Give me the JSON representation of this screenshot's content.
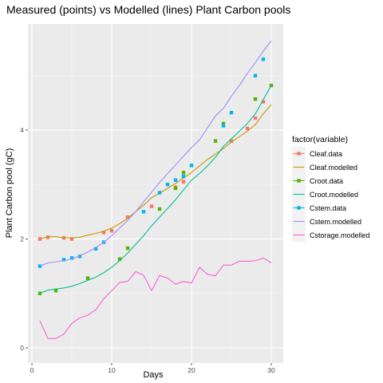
{
  "chart_data": {
    "type": "line",
    "title": "Measured (points) vs Modelled (lines) Plant Carbon pools",
    "xlabel": "Days",
    "ylabel": "Plant Carbon pool (gC)",
    "xlim": [
      -0.5,
      31.5
    ],
    "ylim": [
      -0.28,
      5.95
    ],
    "x_ticks": [
      0,
      10,
      20,
      30
    ],
    "y_ticks": [
      0,
      2,
      4
    ],
    "grid": true,
    "legend_placement": "right",
    "legend_title": "factor(variable)",
    "series": [
      {
        "name": "Cleaf.data",
        "kind": "points",
        "color": "#F8766D",
        "points": [
          [
            1,
            2.0
          ],
          [
            2,
            2.03
          ],
          [
            4,
            2.02
          ],
          [
            5,
            2.0
          ],
          [
            9,
            2.12
          ],
          [
            10,
            2.15
          ],
          [
            12,
            2.4
          ],
          [
            15,
            2.6
          ],
          [
            18,
            2.95
          ],
          [
            19,
            3.05
          ],
          [
            25,
            3.8
          ],
          [
            27,
            4.03
          ],
          [
            28,
            4.22
          ],
          [
            29,
            4.52
          ]
        ]
      },
      {
        "name": "Cleaf.modelled",
        "kind": "line",
        "color": "#C49A00",
        "points": [
          [
            1,
            2.0
          ],
          [
            2,
            2.04
          ],
          [
            3,
            2.04
          ],
          [
            4,
            2.02
          ],
          [
            5,
            2.02
          ],
          [
            6,
            2.03
          ],
          [
            7,
            2.07
          ],
          [
            8,
            2.1
          ],
          [
            9,
            2.14
          ],
          [
            10,
            2.2
          ],
          [
            11,
            2.28
          ],
          [
            12,
            2.38
          ],
          [
            13,
            2.5
          ],
          [
            14,
            2.62
          ],
          [
            15,
            2.76
          ],
          [
            16,
            2.84
          ],
          [
            17,
            2.93
          ],
          [
            18,
            3.02
          ],
          [
            19,
            3.12
          ],
          [
            20,
            3.22
          ],
          [
            21,
            3.34
          ],
          [
            22,
            3.46
          ],
          [
            23,
            3.56
          ],
          [
            24,
            3.66
          ],
          [
            25,
            3.78
          ],
          [
            26,
            3.88
          ],
          [
            27,
            3.98
          ],
          [
            28,
            4.1
          ],
          [
            29,
            4.3
          ],
          [
            30,
            4.47
          ]
        ]
      },
      {
        "name": "Croot.data",
        "kind": "points",
        "color": "#53B400",
        "points": [
          [
            1,
            1.0
          ],
          [
            3,
            1.05
          ],
          [
            7,
            1.28
          ],
          [
            11,
            1.63
          ],
          [
            12,
            1.83
          ],
          [
            16,
            2.55
          ],
          [
            18,
            2.93
          ],
          [
            19,
            3.22
          ],
          [
            23,
            3.8
          ],
          [
            24,
            4.12
          ],
          [
            28,
            4.57
          ],
          [
            30,
            4.82
          ]
        ]
      },
      {
        "name": "Croot.modelled",
        "kind": "line",
        "color": "#00C094",
        "points": [
          [
            1,
            1.0
          ],
          [
            2,
            1.06
          ],
          [
            3,
            1.08
          ],
          [
            4,
            1.1
          ],
          [
            5,
            1.13
          ],
          [
            6,
            1.18
          ],
          [
            7,
            1.24
          ],
          [
            8,
            1.3
          ],
          [
            9,
            1.38
          ],
          [
            10,
            1.48
          ],
          [
            11,
            1.6
          ],
          [
            12,
            1.74
          ],
          [
            13,
            1.9
          ],
          [
            14,
            2.06
          ],
          [
            15,
            2.24
          ],
          [
            16,
            2.4
          ],
          [
            17,
            2.56
          ],
          [
            18,
            2.72
          ],
          [
            19,
            2.9
          ],
          [
            20,
            3.08
          ],
          [
            21,
            3.2
          ],
          [
            22,
            3.34
          ],
          [
            23,
            3.5
          ],
          [
            24,
            3.7
          ],
          [
            25,
            3.84
          ],
          [
            26,
            3.98
          ],
          [
            27,
            4.12
          ],
          [
            28,
            4.3
          ],
          [
            29,
            4.56
          ],
          [
            30,
            4.82
          ]
        ]
      },
      {
        "name": "Cstem.data",
        "kind": "points",
        "color": "#00B6EB",
        "points": [
          [
            1,
            1.5
          ],
          [
            4,
            1.62
          ],
          [
            5,
            1.65
          ],
          [
            6,
            1.68
          ],
          [
            8,
            1.82
          ],
          [
            9,
            1.94
          ],
          [
            14,
            2.5
          ],
          [
            16,
            2.85
          ],
          [
            17,
            3.0
          ],
          [
            18,
            3.08
          ],
          [
            19,
            3.15
          ],
          [
            20,
            3.35
          ],
          [
            24,
            4.08
          ],
          [
            25,
            4.32
          ],
          [
            28,
            5.0
          ],
          [
            29,
            5.3
          ]
        ]
      },
      {
        "name": "Cstem.modelled",
        "kind": "line",
        "color": "#A58AFF",
        "points": [
          [
            1,
            1.5
          ],
          [
            2,
            1.56
          ],
          [
            3,
            1.58
          ],
          [
            4,
            1.6
          ],
          [
            5,
            1.63
          ],
          [
            6,
            1.69
          ],
          [
            7,
            1.76
          ],
          [
            8,
            1.84
          ],
          [
            9,
            1.94
          ],
          [
            10,
            2.06
          ],
          [
            11,
            2.2
          ],
          [
            12,
            2.34
          ],
          [
            13,
            2.5
          ],
          [
            14,
            2.68
          ],
          [
            15,
            2.86
          ],
          [
            16,
            3.04
          ],
          [
            17,
            3.2
          ],
          [
            18,
            3.36
          ],
          [
            19,
            3.52
          ],
          [
            20,
            3.68
          ],
          [
            21,
            3.82
          ],
          [
            22,
            4.04
          ],
          [
            23,
            4.26
          ],
          [
            24,
            4.4
          ],
          [
            25,
            4.62
          ],
          [
            26,
            4.82
          ],
          [
            27,
            5.04
          ],
          [
            28,
            5.24
          ],
          [
            29,
            5.45
          ],
          [
            30,
            5.64
          ]
        ]
      },
      {
        "name": "Cstorage.modelled",
        "kind": "line",
        "color": "#FB61D7",
        "points": [
          [
            1,
            0.5
          ],
          [
            2,
            0.17
          ],
          [
            3,
            0.17
          ],
          [
            4,
            0.25
          ],
          [
            5,
            0.45
          ],
          [
            6,
            0.55
          ],
          [
            7,
            0.6
          ],
          [
            8,
            0.7
          ],
          [
            9,
            0.9
          ],
          [
            10,
            1.05
          ],
          [
            11,
            1.2
          ],
          [
            12,
            1.22
          ],
          [
            13,
            1.4
          ],
          [
            14,
            1.33
          ],
          [
            15,
            1.05
          ],
          [
            16,
            1.33
          ],
          [
            17,
            1.28
          ],
          [
            18,
            1.17
          ],
          [
            19,
            1.22
          ],
          [
            20,
            1.19
          ],
          [
            21,
            1.48
          ],
          [
            22,
            1.35
          ],
          [
            23,
            1.32
          ],
          [
            24,
            1.52
          ],
          [
            25,
            1.52
          ],
          [
            26,
            1.59
          ],
          [
            27,
            1.59
          ],
          [
            28,
            1.6
          ],
          [
            29,
            1.65
          ],
          [
            30,
            1.56
          ]
        ]
      }
    ]
  }
}
